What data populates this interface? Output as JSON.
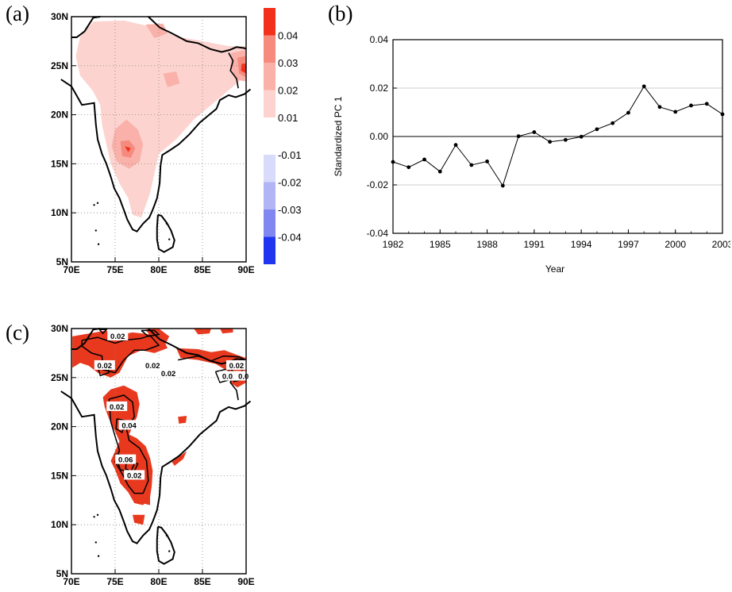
{
  "panels": {
    "a": {
      "label": "(a)"
    },
    "b": {
      "label": "(b)"
    },
    "c": {
      "label": "(c)"
    }
  },
  "colors": {
    "pos1": "#fcd3cf",
    "pos2": "#f9b1a9",
    "pos3": "#f58a7d",
    "pos4": "#f2301c",
    "neg1": "#d9dbfb",
    "neg2": "#b1b5f6",
    "neg3": "#8087f0",
    "neg4": "#1f35f0",
    "mapC_fill": "#e8391f",
    "coast": "#000000"
  },
  "chart_data": [
    {
      "type": "heatmap",
      "id": "map-a",
      "xlabel": "",
      "ylabel": "",
      "x_ticks": [
        "70E",
        "75E",
        "80E",
        "85E",
        "90E"
      ],
      "y_ticks": [
        "5N",
        "10N",
        "15N",
        "20N",
        "25N",
        "30N"
      ],
      "xlim": [
        70,
        90
      ],
      "ylim": [
        5,
        30
      ],
      "grid": true,
      "colorbar": {
        "ticks": [
          "0.04",
          "0.03",
          "0.02",
          "0.01",
          "-0.01",
          "-0.02",
          "-0.03",
          "-0.04"
        ],
        "levels": [
          0.01,
          0.02,
          0.03,
          0.04,
          -0.01,
          -0.02,
          -0.03,
          -0.04
        ]
      },
      "description_values": {
        "max_region": "positive 0.01-0.04 over India, highest ~0.04 near 76.5E 16.5N and 89.5E 24.5N"
      }
    },
    {
      "type": "line",
      "id": "pc1-timeseries",
      "title": "",
      "xlabel": "Year",
      "ylabel": "Standardized PC 1",
      "x_ticks": [
        "1982",
        "1985",
        "1988",
        "1991",
        "1994",
        "1997",
        "2000",
        "2003"
      ],
      "y_ticks": [
        "0.04",
        "0.02",
        "0.00",
        "-0.02",
        "-0.04"
      ],
      "xlim": [
        1982,
        2003
      ],
      "ylim": [
        -0.04,
        0.04
      ],
      "grid": true,
      "x": [
        1982,
        1983,
        1984,
        1985,
        1986,
        1987,
        1988,
        1989,
        1990,
        1991,
        1992,
        1993,
        1994,
        1995,
        1996,
        1997,
        1998,
        1999,
        2000,
        2001,
        2002,
        2003
      ],
      "series": [
        {
          "values": [
            -0.0105,
            -0.0127,
            -0.0095,
            -0.0145,
            -0.0035,
            -0.0118,
            -0.0103,
            -0.0203,
            0.0001,
            0.0018,
            -0.0022,
            -0.0014,
            -0.0001,
            0.003,
            0.0055,
            0.0098,
            0.0207,
            0.0122,
            0.0102,
            0.0128,
            0.0135,
            0.0092
          ]
        }
      ]
    },
    {
      "type": "heatmap",
      "id": "map-c",
      "xlabel": "",
      "ylabel": "",
      "x_ticks": [
        "70E",
        "75E",
        "80E",
        "85E",
        "90E"
      ],
      "y_ticks": [
        "5N",
        "10N",
        "15N",
        "20N",
        "25N",
        "30N"
      ],
      "xlim": [
        70,
        90
      ],
      "ylim": [
        5,
        30
      ],
      "grid": true,
      "contour_labels": [
        "0.02",
        "0.02",
        "0.02",
        "0.02",
        "0.02",
        "0.02",
        "0.02",
        "0.04",
        "0.06",
        "0.02",
        "0.0"
      ]
    }
  ]
}
